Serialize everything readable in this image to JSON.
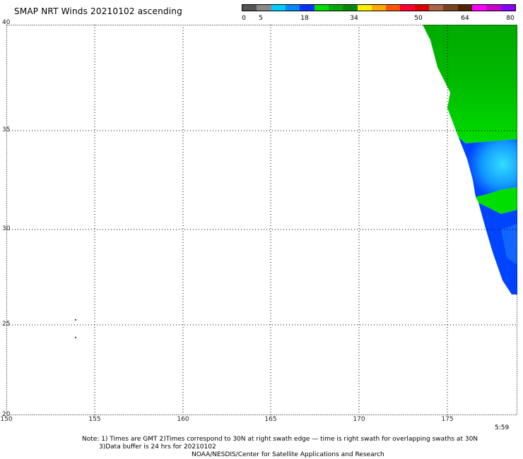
{
  "title": "SMAP NRT Winds 20210102 ascending",
  "legend": {
    "segments": [
      {
        "color": "#555555"
      },
      {
        "color": "#888888"
      },
      {
        "color": "#00ccff"
      },
      {
        "color": "#0088ff"
      },
      {
        "color": "#0033ff"
      },
      {
        "color": "#00dd00"
      },
      {
        "color": "#00aa00"
      },
      {
        "color": "#008800"
      },
      {
        "color": "#ffee00"
      },
      {
        "color": "#ffaa00"
      },
      {
        "color": "#ff5500"
      },
      {
        "color": "#ff0033"
      },
      {
        "color": "#dd0000"
      },
      {
        "color": "#aa6644"
      },
      {
        "color": "#774422"
      },
      {
        "color": "#552200"
      },
      {
        "color": "#ff00ff"
      },
      {
        "color": "#cc00cc"
      },
      {
        "color": "#8800ff"
      }
    ],
    "labels": [
      "0",
      "5",
      "18",
      "34",
      "50",
      "64",
      "80"
    ]
  },
  "axes": {
    "lon_labels": [
      "150",
      "155",
      "160",
      "165",
      "170",
      "175"
    ],
    "lat_labels": [
      "40",
      "35",
      "30",
      "25",
      "20"
    ]
  },
  "time_label": "5:59",
  "notes": {
    "line1": "Note: 1) Times are GMT 2)Times correspond to 30N at right swath edge — time is right swath for overlapping swaths at 30N",
    "line2": "3)Data buffer is 24 hrs for 20210102",
    "credit": "NOAA/NESDIS/Center for Satellite Applications and Research"
  },
  "colors": {
    "wind_green": "#00cc00",
    "wind_dark_green": "#009900",
    "wind_blue": "#0044ff",
    "wind_cyan": "#33ccff"
  }
}
